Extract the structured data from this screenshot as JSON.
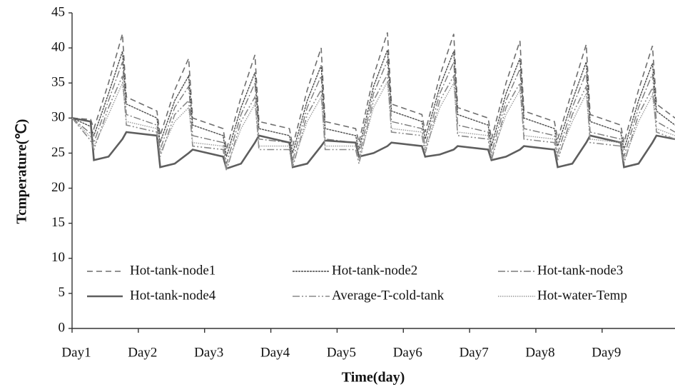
{
  "chart_data": {
    "type": "line",
    "ylabel": "Tcmperature(℃)",
    "xlabel": "Time(day)",
    "xlim": [
      0,
      9.1
    ],
    "ylim": [
      0,
      45
    ],
    "yticks": [
      0,
      5,
      10,
      15,
      20,
      25,
      30,
      35,
      40,
      45
    ],
    "xticks": [
      {
        "value": 0,
        "label": "Day1"
      },
      {
        "value": 1,
        "label": "Day2"
      },
      {
        "value": 2,
        "label": "Day3"
      },
      {
        "value": 3,
        "label": "Day4"
      },
      {
        "value": 4,
        "label": "Day5"
      },
      {
        "value": 5,
        "label": "Day6"
      },
      {
        "value": 6,
        "label": "Day7"
      },
      {
        "value": 7,
        "label": "Day8"
      },
      {
        "value": 8,
        "label": "Day9"
      }
    ],
    "x": [
      0,
      0.28,
      0.33,
      0.55,
      0.76,
      0.82,
      1.28,
      1.33,
      1.55,
      1.76,
      1.82,
      2.28,
      2.33,
      2.55,
      2.76,
      2.82,
      3.28,
      3.33,
      3.55,
      3.76,
      3.82,
      4.28,
      4.33,
      4.55,
      4.76,
      4.82,
      5.28,
      5.33,
      5.55,
      5.76,
      5.82,
      6.28,
      6.33,
      6.55,
      6.76,
      6.82,
      7.28,
      7.33,
      7.55,
      7.76,
      7.82,
      8.28,
      8.33,
      8.55,
      8.76,
      8.82,
      9.1
    ],
    "series": [
      {
        "name": "Hot-tank-node1",
        "color": "#6e6e6e",
        "width": 1.6,
        "dash": "8,5",
        "values": [
          30,
          29.8,
          28.5,
          35,
          42,
          33,
          31,
          27.5,
          34,
          38.5,
          30,
          28.5,
          25.5,
          33,
          39,
          29.5,
          28.5,
          26,
          34,
          40,
          29.5,
          28.5,
          26.5,
          36,
          42.2,
          32,
          30.5,
          28,
          36,
          42,
          31.5,
          30,
          27,
          35,
          41,
          31,
          29.5,
          27,
          34,
          40.5,
          30.5,
          29,
          26.5,
          34,
          40.3,
          32,
          30
        ]
      },
      {
        "name": "Hot-tank-node2",
        "color": "#4a4a4a",
        "width": 1.4,
        "dash": "3,1",
        "values": [
          30,
          28.8,
          27.5,
          33.5,
          39.5,
          32,
          30,
          26.5,
          32.5,
          36,
          29,
          27.5,
          24.5,
          31.5,
          36.5,
          28.5,
          27.5,
          25,
          32.5,
          37.5,
          28.5,
          27.5,
          25.5,
          34.5,
          39.7,
          31,
          29.5,
          27,
          34.5,
          39.5,
          30.5,
          29,
          26,
          33.5,
          38.5,
          30,
          28.5,
          26,
          32.5,
          38,
          29.5,
          28,
          25.5,
          32.5,
          37.8,
          31,
          29
        ]
      },
      {
        "name": "Hot-tank-node3",
        "color": "#7a7a7a",
        "width": 1.4,
        "dash": "10,3,2,3",
        "values": [
          30,
          27.8,
          26.5,
          32.5,
          38,
          30.5,
          29,
          25.5,
          31.5,
          34.5,
          27.5,
          26.5,
          23.5,
          30.5,
          35,
          27,
          26.5,
          24,
          31.5,
          36,
          27,
          26.5,
          24.5,
          33.5,
          38.2,
          29.5,
          28.5,
          26,
          33.5,
          38,
          29,
          28,
          25,
          32.5,
          37,
          28.5,
          27.5,
          25,
          31.5,
          36.5,
          28,
          27,
          24.5,
          31.5,
          36.3,
          29.5,
          28
        ]
      },
      {
        "name": "Hot-tank-node4",
        "color": "#5e5e5e",
        "width": 2.6,
        "dash": "none",
        "values": [
          30,
          29.5,
          24,
          24.5,
          27,
          28,
          27.5,
          23,
          23.5,
          25,
          25.5,
          24.5,
          22.8,
          23.5,
          26.5,
          27.5,
          26.5,
          23,
          23.5,
          26,
          26.8,
          26.5,
          24.5,
          25,
          26,
          26.5,
          26,
          24.5,
          24.8,
          25.5,
          26,
          25.5,
          24,
          24.5,
          25.5,
          26,
          25.5,
          23,
          23.5,
          26.5,
          27.5,
          26.5,
          23,
          23.5,
          26.5,
          27.5,
          27
        ]
      },
      {
        "name": "Average-T-cold-tank",
        "color": "#8a8a8a",
        "width": 1.6,
        "dash": "10,3,2,3,2,3",
        "values": [
          30,
          26.8,
          25.5,
          31.5,
          36,
          29,
          28,
          24.5,
          30.5,
          32.5,
          26,
          25.5,
          22.5,
          29.5,
          33,
          25.5,
          25.5,
          23,
          30.5,
          34,
          25.5,
          25.5,
          23.5,
          32.5,
          36.2,
          28,
          27.5,
          25,
          32.5,
          36,
          27.5,
          27,
          24,
          31.5,
          35,
          27,
          26.5,
          24,
          30.5,
          34.5,
          26.5,
          26,
          23.5,
          30.5,
          34.3,
          28,
          27
        ]
      },
      {
        "name": "Hot-water-Temp",
        "color": "#9a9a9a",
        "width": 1.4,
        "dash": "1.5,1.5",
        "values": [
          30,
          27.3,
          26,
          30.5,
          35,
          29.5,
          28.5,
          25,
          29.5,
          31.5,
          26.5,
          26,
          23,
          28.5,
          32,
          26,
          26,
          23.5,
          29.5,
          33,
          26,
          26,
          24,
          31.5,
          35.2,
          28.5,
          28,
          25.5,
          31.5,
          35,
          28,
          27.5,
          24.5,
          30.5,
          34,
          27.5,
          27,
          24.5,
          29.5,
          33.5,
          27,
          26.5,
          24,
          29.5,
          33.3,
          28.5,
          27.5
        ]
      }
    ]
  }
}
